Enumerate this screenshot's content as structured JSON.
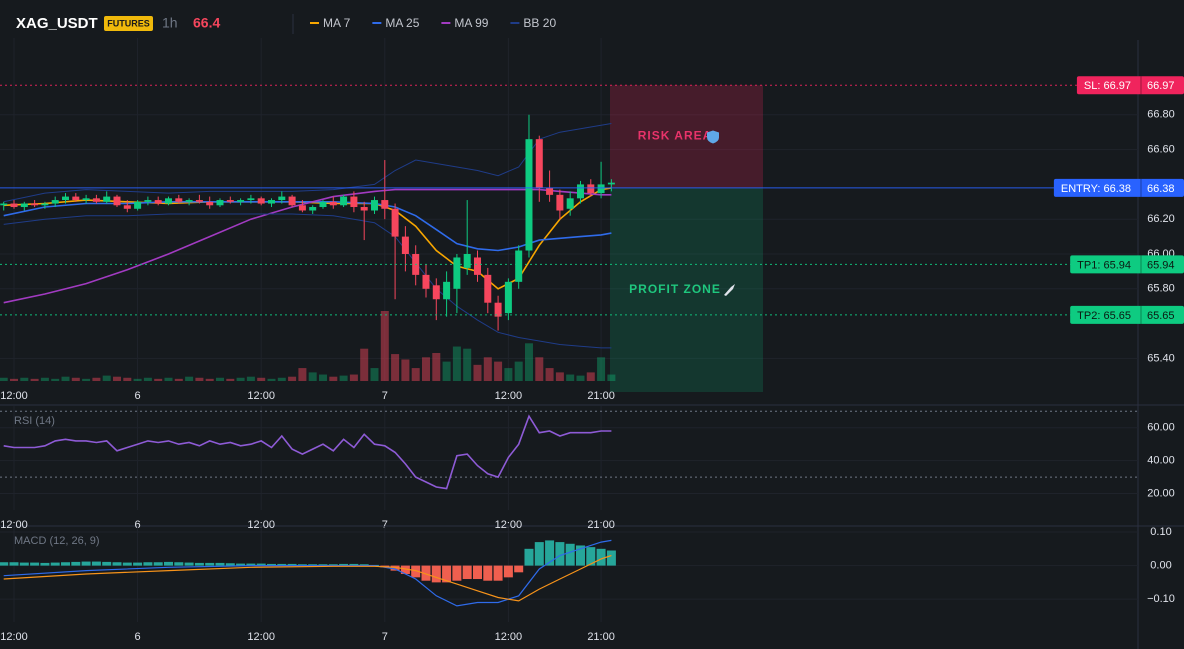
{
  "header": {
    "symbol": "XAG_USDT",
    "badge": "FUTURES",
    "interval": "1h",
    "price": 66.4
  },
  "chart_data": [
    {
      "type": "candlestick",
      "up_color": "#0ecb81",
      "down_color": "#f6465d",
      "xlim": [
        -0.36,
        110.13
      ],
      "ylim": [
        65.27,
        67.23
      ],
      "xticks": [
        {
          "value": 1,
          "label": "12:00"
        },
        {
          "value": 13,
          "label": "6"
        },
        {
          "value": 25,
          "label": "12:00"
        },
        {
          "value": 37,
          "label": "7"
        },
        {
          "value": 49,
          "label": "12:00"
        },
        {
          "value": 58,
          "label": "21:00"
        }
      ],
      "yticks": [
        {
          "value": 65.4,
          "label": "65.40"
        },
        {
          "value": 65.8,
          "label": "65.80"
        },
        {
          "value": 66,
          "label": "66.00"
        },
        {
          "value": 66.2,
          "label": "66.20"
        },
        {
          "value": 66.6,
          "label": "66.60"
        },
        {
          "value": 66.8,
          "label": "66.80"
        }
      ],
      "grid": true,
      "open": [
        66.28,
        66.29,
        66.27,
        66.29,
        66.28,
        66.29,
        66.31,
        66.33,
        66.31,
        66.32,
        66.3,
        66.33,
        66.28,
        66.26,
        66.3,
        66.31,
        66.29,
        66.32,
        66.3,
        66.31,
        66.3,
        66.28,
        66.31,
        66.3,
        66.31,
        66.32,
        66.29,
        66.31,
        66.33,
        66.28,
        66.25,
        66.27,
        66.3,
        66.28,
        66.33,
        66.27,
        66.25,
        66.31,
        66.26,
        66.1,
        66.0,
        65.88,
        65.82,
        65.74,
        65.8,
        65.92,
        65.98,
        65.88,
        65.72,
        65.66,
        65.84,
        66.02,
        66.66,
        66.38,
        66.34,
        66.26,
        66.32,
        66.4,
        66.35,
        66.4
      ],
      "high": [
        66.3,
        66.31,
        66.3,
        66.31,
        66.3,
        66.33,
        66.35,
        66.35,
        66.34,
        66.34,
        66.36,
        66.34,
        66.31,
        66.31,
        66.33,
        66.33,
        66.33,
        66.34,
        66.32,
        66.34,
        66.33,
        66.32,
        66.33,
        66.32,
        66.34,
        66.33,
        66.32,
        66.36,
        66.34,
        66.31,
        66.28,
        66.31,
        66.33,
        66.34,
        66.36,
        66.3,
        66.33,
        66.54,
        66.29,
        66.16,
        66.05,
        65.94,
        65.86,
        65.9,
        66.0,
        66.31,
        66.02,
        65.92,
        65.76,
        65.86,
        66.05,
        66.8,
        66.68,
        66.48,
        66.37,
        66.36,
        66.42,
        66.43,
        66.53,
        66.43
      ],
      "low": [
        66.25,
        66.26,
        66.25,
        66.27,
        66.26,
        66.27,
        66.29,
        66.3,
        66.29,
        66.29,
        66.29,
        66.27,
        66.24,
        66.25,
        66.28,
        66.28,
        66.28,
        66.29,
        66.28,
        66.29,
        66.26,
        66.27,
        66.29,
        66.28,
        66.29,
        66.28,
        66.27,
        66.29,
        66.27,
        66.24,
        66.23,
        66.26,
        66.26,
        66.27,
        66.24,
        66.08,
        66.23,
        66.2,
        65.74,
        65.9,
        65.82,
        65.75,
        65.62,
        65.64,
        65.66,
        65.88,
        65.84,
        65.66,
        65.56,
        65.62,
        65.8,
        65.98,
        66.3,
        66.3,
        66.2,
        66.22,
        66.29,
        66.33,
        66.32,
        66.36
      ],
      "close": [
        66.29,
        66.27,
        66.29,
        66.28,
        66.29,
        66.31,
        66.33,
        66.31,
        66.32,
        66.3,
        66.33,
        66.28,
        66.26,
        66.3,
        66.31,
        66.29,
        66.32,
        66.3,
        66.31,
        66.3,
        66.28,
        66.31,
        66.3,
        66.31,
        66.32,
        66.29,
        66.31,
        66.33,
        66.28,
        66.25,
        66.27,
        66.3,
        66.28,
        66.33,
        66.27,
        66.25,
        66.31,
        66.26,
        66.1,
        66.0,
        65.88,
        65.8,
        65.74,
        65.84,
        65.98,
        66.0,
        65.88,
        65.72,
        65.64,
        65.84,
        66.02,
        66.66,
        66.38,
        66.34,
        66.25,
        66.32,
        66.4,
        66.35,
        66.4,
        66.41
      ],
      "volume": [
        3,
        2,
        3,
        2,
        3,
        2,
        4,
        3,
        2,
        3,
        5,
        4,
        3,
        2,
        3,
        2,
        3,
        2,
        4,
        3,
        2,
        3,
        2,
        3,
        4,
        3,
        2,
        3,
        4,
        12,
        8,
        6,
        4,
        5,
        6,
        30,
        12,
        65,
        25,
        20,
        12,
        22,
        26,
        18,
        32,
        30,
        15,
        22,
        18,
        12,
        18,
        35,
        22,
        12,
        8,
        6,
        5,
        8,
        22,
        6
      ],
      "series": [
        {
          "name": "MA 7",
          "color": "#f7a600",
          "x": [
            0,
            4,
            8,
            12,
            16,
            20,
            24,
            28,
            32,
            36,
            38,
            40,
            42,
            44,
            46,
            48,
            50,
            52,
            54,
            56,
            58,
            59
          ],
          "values": [
            66.28,
            66.29,
            66.31,
            66.3,
            66.29,
            66.3,
            66.3,
            66.3,
            66.29,
            66.29,
            66.25,
            66.16,
            66.02,
            65.93,
            65.9,
            65.8,
            65.86,
            66.05,
            66.2,
            66.3,
            66.37,
            66.38
          ]
        },
        {
          "name": "MA 25",
          "color": "#2f6bea",
          "x": [
            0,
            4,
            8,
            12,
            16,
            20,
            24,
            28,
            32,
            36,
            38,
            40,
            42,
            44,
            46,
            48,
            50,
            52,
            54,
            56,
            58,
            59
          ],
          "values": [
            66.22,
            66.27,
            66.29,
            66.29,
            66.3,
            66.3,
            66.3,
            66.3,
            66.3,
            66.29,
            66.27,
            66.22,
            66.14,
            66.06,
            66.03,
            66.02,
            66.04,
            66.08,
            66.09,
            66.1,
            66.11,
            66.12
          ]
        },
        {
          "name": "MA 99",
          "color": "#a23bc2",
          "x": [
            0,
            4,
            8,
            12,
            16,
            20,
            24,
            28,
            32,
            36,
            38,
            40,
            42,
            44,
            46,
            48,
            50,
            52,
            54,
            56,
            58,
            59
          ],
          "values": [
            65.72,
            65.77,
            65.83,
            65.91,
            66.0,
            66.1,
            66.2,
            66.27,
            66.33,
            66.36,
            66.37,
            66.37,
            66.37,
            66.37,
            66.37,
            66.37,
            66.37,
            66.37,
            66.36,
            66.35,
            66.34,
            66.34
          ]
        },
        {
          "name": "BB 20",
          "color": "#1f3c88",
          "x": [
            0,
            4,
            8,
            12,
            16,
            20,
            24,
            28,
            32,
            36,
            38,
            40,
            42,
            44,
            46,
            48,
            50,
            52,
            54,
            56,
            58,
            59
          ],
          "values": [
            66.3,
            66.35,
            66.37,
            66.36,
            66.35,
            66.36,
            66.36,
            66.36,
            66.37,
            66.4,
            66.48,
            66.54,
            66.52,
            66.5,
            66.48,
            66.45,
            66.5,
            66.66,
            66.7,
            66.72,
            66.74,
            66.75
          ],
          "lower": [
            66.17,
            66.2,
            66.22,
            66.22,
            66.23,
            66.23,
            66.23,
            66.23,
            66.22,
            66.18,
            66.1,
            65.95,
            65.8,
            65.7,
            65.62,
            65.55,
            65.52,
            65.5,
            65.48,
            65.47,
            65.46,
            65.46
          ]
        }
      ],
      "price_lines": [
        {
          "label": "SL: 66.97",
          "value": 66.97,
          "color": "#f0245d"
        },
        {
          "label": "ENTRY: 66.38",
          "value": 66.38,
          "color": "#2962ff"
        },
        {
          "label": "TP1: 65.94",
          "value": 65.94,
          "color": "#0ecb81"
        },
        {
          "label": "TP2: 65.65",
          "value": 65.65,
          "color": "#0ecb81"
        }
      ],
      "risk_label": "RISK AREA",
      "profit_label": "PROFIT ZONE"
    },
    {
      "type": "line",
      "title": "RSI (14)",
      "color": "#8e5bd6",
      "xlim": [
        -0.36,
        110.13
      ],
      "ylim": [
        10,
        72
      ],
      "xticks": [
        {
          "value": 1,
          "label": "12:00"
        },
        {
          "value": 13,
          "label": "6"
        },
        {
          "value": 25,
          "label": "12:00"
        },
        {
          "value": 37,
          "label": "7"
        },
        {
          "value": 49,
          "label": "12:00"
        },
        {
          "value": 58,
          "label": "21:00"
        }
      ],
      "yticks": [
        {
          "value": 20,
          "label": "20.00"
        },
        {
          "value": 40,
          "label": "40.00"
        },
        {
          "value": 60,
          "label": "60.00"
        }
      ],
      "levels": [
        70,
        30
      ],
      "values": [
        49,
        48,
        48,
        48,
        49,
        52,
        53,
        52,
        52,
        51,
        52,
        46,
        48,
        50,
        52,
        51,
        52,
        50,
        51,
        49,
        52,
        50,
        51,
        49,
        50,
        52,
        48,
        55,
        47,
        44,
        47,
        50,
        46,
        53,
        48,
        56,
        50,
        49,
        45,
        38,
        30,
        27,
        24,
        23,
        43,
        44,
        37,
        32,
        30,
        42,
        50,
        67,
        57,
        58,
        55,
        57,
        57,
        57,
        58,
        58
      ]
    },
    {
      "type": "bar",
      "title": "MACD (12, 26, 9)",
      "up_color": "#26a69a",
      "down_color": "#ef5f4f",
      "xlim": [
        -0.36,
        110.13
      ],
      "ylim": [
        -0.168,
        0.112
      ],
      "xticks": [
        {
          "value": 1,
          "label": "12:00"
        },
        {
          "value": 13,
          "label": "6"
        },
        {
          "value": 25,
          "label": "12:00"
        },
        {
          "value": 37,
          "label": "7"
        },
        {
          "value": 49,
          "label": "12:00"
        },
        {
          "value": 58,
          "label": "21:00"
        }
      ],
      "yticks": [
        {
          "value": -0.1,
          "label": "−0.10"
        },
        {
          "value": 0,
          "label": "0.00"
        },
        {
          "value": 0.1,
          "label": "0.10"
        }
      ],
      "values": [
        0.01,
        0.01,
        0.009,
        0.009,
        0.008,
        0.009,
        0.01,
        0.011,
        0.012,
        0.012,
        0.011,
        0.01,
        0.009,
        0.009,
        0.01,
        0.01,
        0.011,
        0.01,
        0.009,
        0.008,
        0.008,
        0.008,
        0.007,
        0.006,
        0.006,
        0.006,
        0.005,
        0.005,
        0.005,
        0.004,
        0.004,
        0.004,
        0.004,
        0.005,
        0.005,
        0.004,
        0.002,
        -0.005,
        -0.015,
        -0.025,
        -0.035,
        -0.045,
        -0.05,
        -0.05,
        -0.045,
        -0.04,
        -0.04,
        -0.045,
        -0.045,
        -0.035,
        -0.02,
        0.05,
        0.07,
        0.075,
        0.07,
        0.065,
        0.06,
        0.055,
        0.05,
        0.045
      ],
      "series": [
        {
          "color": "#2f6bea",
          "x": [
            0,
            8,
            16,
            24,
            32,
            36,
            38,
            40,
            42,
            44,
            46,
            48,
            50,
            52,
            54,
            56,
            58,
            59
          ],
          "values": [
            -0.03,
            -0.015,
            -0.005,
            0,
            0,
            0,
            -0.01,
            -0.04,
            -0.09,
            -0.12,
            -0.11,
            -0.11,
            -0.09,
            -0.01,
            0.03,
            0.05,
            0.07,
            0.075
          ]
        },
        {
          "color": "#f7931a",
          "x": [
            0,
            8,
            16,
            24,
            32,
            36,
            38,
            40,
            42,
            44,
            46,
            48,
            50,
            52,
            54,
            56,
            58,
            59
          ],
          "values": [
            -0.04,
            -0.025,
            -0.015,
            -0.005,
            -0.002,
            -0.002,
            -0.005,
            -0.015,
            -0.035,
            -0.055,
            -0.075,
            -0.095,
            -0.105,
            -0.07,
            -0.04,
            -0.01,
            0.02,
            0.03
          ]
        }
      ]
    }
  ]
}
